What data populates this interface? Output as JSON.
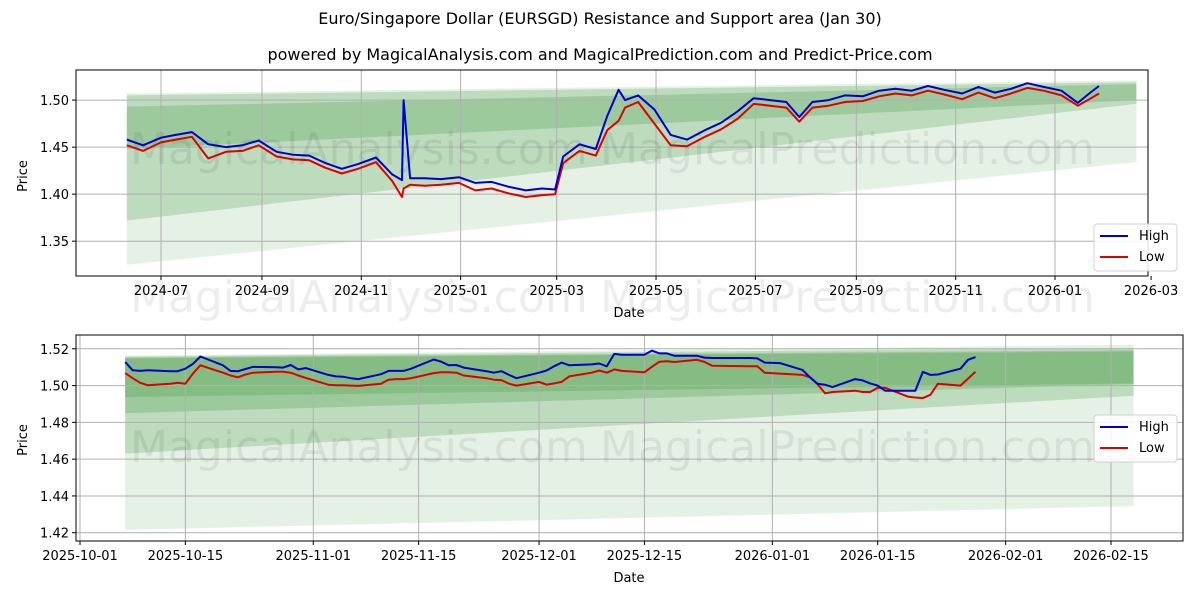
{
  "header": {
    "title": "Euro/Singapore Dollar (EURSGD) Resistance and Support area (Jan 30)",
    "subtitle": "powered by MagicalAnalysis.com and MagicalPrediction.com and Predict-Price.com"
  },
  "watermarks": [
    "MagicalAnalysis.com",
    "MagicalPrediction.com"
  ],
  "colors": {
    "high": "#0000cc",
    "low": "#dd0000",
    "band": "#2e8b2e",
    "grid": "#b0b0b0"
  },
  "chart_data": [
    {
      "type": "line",
      "title": "Full history (top panel)",
      "xlabel": "Date",
      "ylabel": "Price",
      "ylim": [
        1.313,
        1.532
      ],
      "x_ticks": [
        "2024-07",
        "2024-09",
        "2024-11",
        "2025-01",
        "2025-03",
        "2025-05",
        "2025-07",
        "2025-09",
        "2025-11",
        "2026-01",
        "2026-03"
      ],
      "y_ticks": [
        "1.35",
        "1.40",
        "1.45",
        "1.50"
      ],
      "grid": true,
      "legend": {
        "position": "lower right",
        "entries": [
          "High",
          "Low"
        ]
      },
      "x": [
        "2024-06-10",
        "2024-06-20",
        "2024-07-01",
        "2024-07-10",
        "2024-07-20",
        "2024-07-30",
        "2024-08-10",
        "2024-08-20",
        "2024-08-30",
        "2024-09-10",
        "2024-09-20",
        "2024-09-30",
        "2024-10-10",
        "2024-10-20",
        "2024-10-30",
        "2024-11-10",
        "2024-11-20",
        "2024-11-26",
        "2024-11-27",
        "2024-12-01",
        "2024-12-10",
        "2024-12-20",
        "2024-12-31",
        "2025-01-10",
        "2025-01-20",
        "2025-01-30",
        "2025-02-10",
        "2025-02-20",
        "2025-02-28",
        "2025-03-05",
        "2025-03-15",
        "2025-03-25",
        "2025-04-01",
        "2025-04-08",
        "2025-04-12",
        "2025-04-20",
        "2025-04-30",
        "2025-05-10",
        "2025-05-20",
        "2025-05-31",
        "2025-06-10",
        "2025-06-20",
        "2025-06-30",
        "2025-07-10",
        "2025-07-20",
        "2025-07-28",
        "2025-08-05",
        "2025-08-15",
        "2025-08-25",
        "2025-09-05",
        "2025-09-15",
        "2025-09-25",
        "2025-10-05",
        "2025-10-15",
        "2025-10-25",
        "2025-11-05",
        "2025-11-15",
        "2025-11-25",
        "2025-12-05",
        "2025-12-15",
        "2025-12-25",
        "2026-01-05",
        "2026-01-15",
        "2026-01-22",
        "2026-01-28"
      ],
      "series": [
        {
          "name": "High",
          "values": [
            1.458,
            1.452,
            1.46,
            1.463,
            1.466,
            1.453,
            1.45,
            1.452,
            1.457,
            1.445,
            1.442,
            1.441,
            1.433,
            1.427,
            1.432,
            1.439,
            1.421,
            1.415,
            1.5,
            1.417,
            1.417,
            1.416,
            1.418,
            1.412,
            1.413,
            1.408,
            1.404,
            1.406,
            1.405,
            1.44,
            1.453,
            1.448,
            1.483,
            1.511,
            1.5,
            1.505,
            1.49,
            1.463,
            1.458,
            1.468,
            1.476,
            1.488,
            1.502,
            1.5,
            1.498,
            1.482,
            1.498,
            1.5,
            1.505,
            1.504,
            1.51,
            1.512,
            1.51,
            1.515,
            1.511,
            1.507,
            1.514,
            1.508,
            1.512,
            1.518,
            1.514,
            1.51,
            1.497,
            1.507,
            1.515
          ]
        },
        {
          "name": "Low",
          "values": [
            1.452,
            1.446,
            1.455,
            1.458,
            1.461,
            1.438,
            1.445,
            1.446,
            1.452,
            1.44,
            1.437,
            1.436,
            1.428,
            1.422,
            1.427,
            1.434,
            1.414,
            1.397,
            1.406,
            1.41,
            1.409,
            1.41,
            1.412,
            1.404,
            1.406,
            1.401,
            1.397,
            1.399,
            1.4,
            1.433,
            1.446,
            1.441,
            1.468,
            1.478,
            1.492,
            1.498,
            1.475,
            1.452,
            1.451,
            1.461,
            1.469,
            1.48,
            1.496,
            1.494,
            1.492,
            1.477,
            1.492,
            1.494,
            1.498,
            1.499,
            1.504,
            1.507,
            1.505,
            1.51,
            1.506,
            1.501,
            1.508,
            1.502,
            1.507,
            1.513,
            1.51,
            1.505,
            1.494,
            1.501,
            1.507
          ]
        }
      ],
      "bands": [
        {
          "x_start": "2024-06-10",
          "x_end": "2026-02-20",
          "top": [
            1.507,
            1.521
          ],
          "bottom": [
            1.325,
            1.434
          ],
          "opacity": 0.12
        },
        {
          "x_start": "2024-06-10",
          "x_end": "2026-02-20",
          "top": [
            1.505,
            1.519
          ],
          "bottom": [
            1.372,
            1.496
          ],
          "opacity": 0.22
        },
        {
          "x_start": "2024-06-10",
          "x_end": "2026-02-20",
          "top": [
            1.493,
            1.517
          ],
          "bottom": [
            1.448,
            1.5
          ],
          "opacity": 0.22
        }
      ]
    },
    {
      "type": "line",
      "title": "Recent zoom (bottom panel)",
      "xlabel": "Date",
      "ylabel": "Price",
      "ylim": [
        1.4155,
        1.5275
      ],
      "x_ticks": [
        "2025-10-01",
        "2025-10-15",
        "2025-11-01",
        "2025-11-15",
        "2025-12-01",
        "2025-12-15",
        "2026-01-01",
        "2026-01-15",
        "2026-02-01",
        "2026-02-15"
      ],
      "y_ticks": [
        "1.42",
        "1.44",
        "1.46",
        "1.48",
        "1.50",
        "1.52"
      ],
      "grid": true,
      "legend": {
        "position": "center right",
        "entries": [
          "High",
          "Low"
        ]
      },
      "x": [
        "2025-10-07",
        "2025-10-08",
        "2025-10-09",
        "2025-10-10",
        "2025-10-13",
        "2025-10-14",
        "2025-10-15",
        "2025-10-16",
        "2025-10-17",
        "2025-10-20",
        "2025-10-21",
        "2025-10-22",
        "2025-10-23",
        "2025-10-24",
        "2025-10-27",
        "2025-10-28",
        "2025-10-29",
        "2025-10-30",
        "2025-10-31",
        "2025-11-03",
        "2025-11-04",
        "2025-11-05",
        "2025-11-06",
        "2025-11-07",
        "2025-11-10",
        "2025-11-11",
        "2025-11-12",
        "2025-11-13",
        "2025-11-14",
        "2025-11-17",
        "2025-11-18",
        "2025-11-19",
        "2025-11-20",
        "2025-11-21",
        "2025-11-24",
        "2025-11-25",
        "2025-11-26",
        "2025-11-27",
        "2025-11-28",
        "2025-12-01",
        "2025-12-02",
        "2025-12-03",
        "2025-12-04",
        "2025-12-05",
        "2025-12-08",
        "2025-12-09",
        "2025-12-10",
        "2025-12-11",
        "2025-12-12",
        "2025-12-15",
        "2025-12-16",
        "2025-12-17",
        "2025-12-18",
        "2025-12-19",
        "2025-12-22",
        "2025-12-23",
        "2025-12-24",
        "2025-12-29",
        "2025-12-30",
        "2025-12-31",
        "2026-01-02",
        "2026-01-05",
        "2026-01-06",
        "2026-01-07",
        "2026-01-08",
        "2026-01-09",
        "2026-01-12",
        "2026-01-13",
        "2026-01-14",
        "2026-01-15",
        "2026-01-16",
        "2026-01-19",
        "2026-01-20",
        "2026-01-21",
        "2026-01-22",
        "2026-01-23",
        "2026-01-26",
        "2026-01-27",
        "2026-01-28"
      ],
      "series": [
        {
          "name": "High",
          "values": [
            1.5128,
            1.5083,
            1.508,
            1.5083,
            1.5078,
            1.5078,
            1.5092,
            1.5118,
            1.5158,
            1.511,
            1.508,
            1.5078,
            1.509,
            1.5102,
            1.51,
            1.5098,
            1.5112,
            1.5088,
            1.5095,
            1.5058,
            1.505,
            1.5048,
            1.504,
            1.5035,
            1.5062,
            1.508,
            1.508,
            1.508,
            1.5092,
            1.5142,
            1.513,
            1.511,
            1.5112,
            1.5098,
            1.5078,
            1.507,
            1.5078,
            1.5058,
            1.504,
            1.507,
            1.5082,
            1.5105,
            1.5125,
            1.511,
            1.5115,
            1.512,
            1.5105,
            1.5172,
            1.5168,
            1.5168,
            1.519,
            1.5175,
            1.5175,
            1.5162,
            1.5162,
            1.5152,
            1.515,
            1.515,
            1.5148,
            1.5125,
            1.5122,
            1.5085,
            1.5045,
            1.501,
            1.5005,
            1.4992,
            1.5035,
            1.5028,
            1.5012,
            1.5,
            1.4972,
            1.4972,
            1.4972,
            1.5075,
            1.5058,
            1.506,
            1.5092,
            1.514,
            1.5155
          ]
        },
        {
          "name": "Low",
          "values": [
            1.5068,
            1.504,
            1.5015,
            1.5002,
            1.501,
            1.5015,
            1.501,
            1.5065,
            1.511,
            1.507,
            1.5055,
            1.5045,
            1.506,
            1.507,
            1.5075,
            1.5075,
            1.507,
            1.5055,
            1.5042,
            1.5005,
            1.5002,
            1.5002,
            1.5,
            1.4998,
            1.501,
            1.5032,
            1.5035,
            1.5035,
            1.504,
            1.5068,
            1.5072,
            1.5072,
            1.507,
            1.5055,
            1.504,
            1.5032,
            1.503,
            1.501,
            1.5,
            1.502,
            1.5005,
            1.5012,
            1.502,
            1.505,
            1.507,
            1.5082,
            1.507,
            1.5088,
            1.508,
            1.5072,
            1.5102,
            1.513,
            1.5132,
            1.5128,
            1.514,
            1.5128,
            1.5108,
            1.5105,
            1.5105,
            1.507,
            1.5065,
            1.5058,
            1.5045,
            1.5008,
            1.4958,
            1.4965,
            1.4972,
            1.4965,
            1.4965,
            1.4988,
            1.4988,
            1.494,
            1.4935,
            1.4932,
            1.495,
            1.501,
            1.5,
            1.5038,
            1.5075
          ]
        }
      ],
      "bands": [
        {
          "x_start": "2025-10-07",
          "x_end": "2026-02-18",
          "top": [
            1.5162,
            1.5222
          ],
          "bottom": [
            1.4215,
            1.4345
          ],
          "opacity": 0.12
        },
        {
          "x_start": "2025-10-07",
          "x_end": "2026-02-18",
          "top": [
            1.5158,
            1.5205
          ],
          "bottom": [
            1.463,
            1.4945
          ],
          "opacity": 0.22
        },
        {
          "x_start": "2025-10-07",
          "x_end": "2026-02-18",
          "top": [
            1.5152,
            1.5192
          ],
          "bottom": [
            1.485,
            1.5008
          ],
          "opacity": 0.22
        },
        {
          "x_start": "2025-10-07",
          "x_end": "2026-02-18",
          "top": [
            1.5148,
            1.5185
          ],
          "bottom": [
            1.4938,
            1.5012
          ],
          "opacity": 0.22
        }
      ]
    }
  ]
}
